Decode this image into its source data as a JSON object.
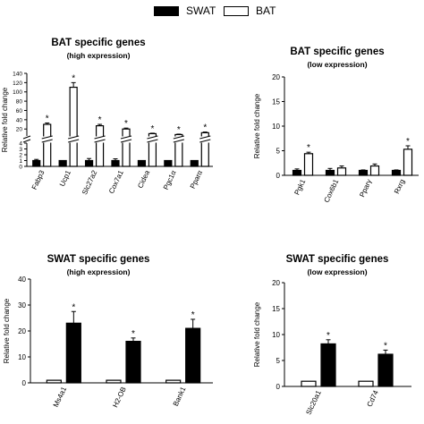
{
  "legend": [
    {
      "label": "SWAT",
      "style": "filled"
    },
    {
      "label": "BAT",
      "style": "open"
    }
  ],
  "chart_data": [
    {
      "type": "bar",
      "title": "BAT specific genes",
      "subtitle": "(high expression)",
      "ylabel": "Relative fold change",
      "categories": [
        "Fabp3",
        "Ucp1",
        "Slc27a2",
        "Cox7a1",
        "Cidea",
        "Pgc1α",
        "Pparα"
      ],
      "series": [
        {
          "name": "SWAT",
          "style": "filled",
          "values": [
            1,
            1,
            1,
            1,
            1,
            1,
            1
          ],
          "errors": [
            0.2,
            0.05,
            0.35,
            0.3,
            0.05,
            0.05,
            0.05
          ]
        },
        {
          "name": "BAT",
          "style": "open",
          "values": [
            30,
            110,
            27,
            20,
            10,
            8,
            12
          ],
          "errors": [
            3,
            10,
            3,
            2,
            1,
            1,
            1.5
          ]
        }
      ],
      "significance": [
        "*",
        "*",
        "*",
        "*",
        "*",
        "*",
        "*"
      ],
      "axis_break": true,
      "y_ticks_lower": [
        "0",
        "1",
        "2",
        "3",
        "4"
      ],
      "y_ticks_upper": [
        "20",
        "40",
        "60",
        "80",
        "100",
        "120",
        "140"
      ],
      "ylim_lower": [
        0,
        4
      ],
      "ylim_upper": [
        5,
        140
      ],
      "grid": false
    },
    {
      "type": "bar",
      "title": "BAT specific genes",
      "subtitle": "(low expression)",
      "ylabel": "Relative fold change",
      "categories": [
        "Pgk1",
        "Cox6b1",
        "Pparγ",
        "Rxrg"
      ],
      "series": [
        {
          "name": "SWAT",
          "style": "filled",
          "values": [
            1.0,
            1.0,
            1.0,
            1.0
          ],
          "errors": [
            0.3,
            0.4,
            0.1,
            0.1
          ]
        },
        {
          "name": "BAT",
          "style": "open",
          "values": [
            4.4,
            1.5,
            1.9,
            5.3
          ],
          "errors": [
            0.3,
            0.4,
            0.4,
            0.7
          ]
        }
      ],
      "significance": [
        "*",
        "",
        "",
        "*"
      ],
      "y_ticks": [
        "0",
        "5",
        "10",
        "15",
        "20"
      ],
      "ylim": [
        0,
        20
      ],
      "grid": false
    },
    {
      "type": "bar",
      "title": "SWAT specific genes",
      "subtitle": "(high expression)",
      "ylabel": "Relative fold change",
      "categories": [
        "Ms4a1",
        "H2-OB",
        "Bank1"
      ],
      "series": [
        {
          "name": "BAT",
          "style": "open",
          "values": [
            1,
            1,
            1
          ],
          "errors": [
            0,
            0,
            0
          ]
        },
        {
          "name": "SWAT",
          "style": "filled",
          "values": [
            23,
            16,
            21
          ],
          "errors": [
            4.5,
            1.3,
            3.5
          ]
        }
      ],
      "significance": [
        "*",
        "*",
        "*"
      ],
      "y_ticks": [
        "0",
        "10",
        "20",
        "30",
        "40"
      ],
      "ylim": [
        0,
        40
      ],
      "grid": false
    },
    {
      "type": "bar",
      "title": "SWAT specific genes",
      "subtitle": "(low expression)",
      "ylabel": "Relative fold change",
      "categories": [
        "Slc20a1",
        "Cd74"
      ],
      "series": [
        {
          "name": "BAT",
          "style": "open",
          "values": [
            1,
            1
          ],
          "errors": [
            0,
            0
          ]
        },
        {
          "name": "SWAT",
          "style": "filled",
          "values": [
            8.2,
            6.2
          ],
          "errors": [
            0.8,
            0.8
          ]
        }
      ],
      "significance": [
        "*",
        "*"
      ],
      "y_ticks": [
        "0",
        "5",
        "10",
        "15",
        "20"
      ],
      "ylim": [
        0,
        20
      ],
      "grid": false
    }
  ]
}
